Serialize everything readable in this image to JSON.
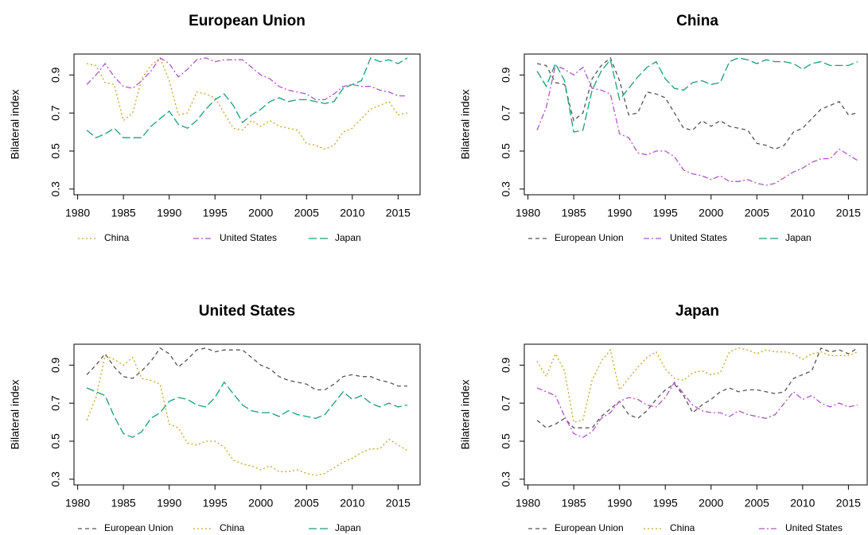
{
  "chart_data": [
    {
      "type": "line",
      "title": "European Union",
      "ylabel": "Bilateral index",
      "x": [
        1981,
        1982,
        1983,
        1984,
        1985,
        1986,
        1987,
        1988,
        1989,
        1990,
        1991,
        1992,
        1993,
        1994,
        1995,
        1996,
        1997,
        1998,
        1999,
        2000,
        2001,
        2002,
        2003,
        2004,
        2005,
        2006,
        2007,
        2008,
        2009,
        2010,
        2011,
        2012,
        2013,
        2014,
        2015,
        2016
      ],
      "xlim": [
        1979.6,
        2017.4
      ],
      "xticks": [
        1980,
        1985,
        1990,
        1995,
        2000,
        2005,
        2010,
        2015
      ],
      "ylim": [
        0.27,
        1.01
      ],
      "yticks": [
        0.3,
        0.5,
        0.7,
        0.9
      ],
      "series": [
        {
          "name": "China",
          "color": "#c9a227",
          "linestyle": "dotted",
          "values": [
            0.96,
            0.95,
            0.86,
            0.85,
            0.66,
            0.7,
            0.88,
            0.95,
            0.99,
            0.87,
            0.69,
            0.7,
            0.81,
            0.8,
            0.78,
            0.7,
            0.62,
            0.61,
            0.66,
            0.63,
            0.66,
            0.63,
            0.62,
            0.61,
            0.54,
            0.53,
            0.51,
            0.53,
            0.6,
            0.62,
            0.67,
            0.72,
            0.74,
            0.76,
            0.69,
            0.7
          ]
        },
        {
          "name": "United States",
          "color": "#b155c6",
          "linestyle": "dashdot",
          "values": [
            0.85,
            0.9,
            0.96,
            0.89,
            0.84,
            0.83,
            0.87,
            0.92,
            0.99,
            0.96,
            0.89,
            0.93,
            0.98,
            0.99,
            0.97,
            0.98,
            0.98,
            0.98,
            0.94,
            0.9,
            0.88,
            0.84,
            0.82,
            0.81,
            0.8,
            0.77,
            0.77,
            0.8,
            0.84,
            0.85,
            0.84,
            0.84,
            0.82,
            0.81,
            0.79,
            0.79
          ]
        },
        {
          "name": "Japan",
          "color": "#1b9e77",
          "linestyle": "longdash",
          "values": [
            0.61,
            0.57,
            0.59,
            0.62,
            0.57,
            0.57,
            0.57,
            0.63,
            0.67,
            0.71,
            0.64,
            0.62,
            0.66,
            0.72,
            0.77,
            0.8,
            0.74,
            0.65,
            0.69,
            0.72,
            0.76,
            0.78,
            0.76,
            0.77,
            0.77,
            0.76,
            0.75,
            0.76,
            0.83,
            0.85,
            0.87,
            0.99,
            0.97,
            0.98,
            0.96,
            0.99
          ]
        }
      ]
    },
    {
      "type": "line",
      "title": "China",
      "ylabel": "Bilateral index",
      "x": [
        1981,
        1982,
        1983,
        1984,
        1985,
        1986,
        1987,
        1988,
        1989,
        1990,
        1991,
        1992,
        1993,
        1994,
        1995,
        1996,
        1997,
        1998,
        1999,
        2000,
        2001,
        2002,
        2003,
        2004,
        2005,
        2006,
        2007,
        2008,
        2009,
        2010,
        2011,
        2012,
        2013,
        2014,
        2015,
        2016
      ],
      "xlim": [
        1979.6,
        2017.4
      ],
      "xticks": [
        1980,
        1985,
        1990,
        1995,
        2000,
        2005,
        2010,
        2015
      ],
      "ylim": [
        0.27,
        1.01
      ],
      "yticks": [
        0.3,
        0.5,
        0.7,
        0.9
      ],
      "series": [
        {
          "name": "European Union",
          "color": "#555555",
          "linestyle": "dashed",
          "values": [
            0.96,
            0.95,
            0.86,
            0.85,
            0.66,
            0.7,
            0.88,
            0.95,
            0.99,
            0.87,
            0.69,
            0.7,
            0.81,
            0.8,
            0.78,
            0.7,
            0.62,
            0.61,
            0.66,
            0.63,
            0.66,
            0.63,
            0.62,
            0.61,
            0.54,
            0.53,
            0.51,
            0.53,
            0.6,
            0.62,
            0.67,
            0.72,
            0.74,
            0.76,
            0.69,
            0.7
          ]
        },
        {
          "name": "United States",
          "color": "#b155c6",
          "linestyle": "dashdot",
          "values": [
            0.61,
            0.73,
            0.95,
            0.93,
            0.9,
            0.94,
            0.83,
            0.82,
            0.8,
            0.59,
            0.57,
            0.49,
            0.48,
            0.5,
            0.5,
            0.47,
            0.4,
            0.38,
            0.37,
            0.35,
            0.37,
            0.34,
            0.34,
            0.35,
            0.33,
            0.32,
            0.33,
            0.36,
            0.39,
            0.41,
            0.44,
            0.46,
            0.46,
            0.51,
            0.48,
            0.45
          ]
        },
        {
          "name": "Japan",
          "color": "#1b9e77",
          "linestyle": "longdash",
          "values": [
            0.92,
            0.84,
            0.96,
            0.87,
            0.6,
            0.61,
            0.82,
            0.92,
            0.98,
            0.77,
            0.83,
            0.89,
            0.94,
            0.97,
            0.88,
            0.83,
            0.82,
            0.86,
            0.87,
            0.85,
            0.86,
            0.97,
            0.99,
            0.98,
            0.96,
            0.98,
            0.97,
            0.97,
            0.96,
            0.93,
            0.96,
            0.97,
            0.95,
            0.95,
            0.95,
            0.97
          ]
        }
      ]
    },
    {
      "type": "line",
      "title": "United States",
      "ylabel": "Bilateral index",
      "x": [
        1981,
        1982,
        1983,
        1984,
        1985,
        1986,
        1987,
        1988,
        1989,
        1990,
        1991,
        1992,
        1993,
        1994,
        1995,
        1996,
        1997,
        1998,
        1999,
        2000,
        2001,
        2002,
        2003,
        2004,
        2005,
        2006,
        2007,
        2008,
        2009,
        2010,
        2011,
        2012,
        2013,
        2014,
        2015,
        2016
      ],
      "xlim": [
        1979.6,
        2017.4
      ],
      "xticks": [
        1980,
        1985,
        1990,
        1995,
        2000,
        2005,
        2010,
        2015
      ],
      "ylim": [
        0.27,
        1.01
      ],
      "yticks": [
        0.3,
        0.5,
        0.7,
        0.9
      ],
      "series": [
        {
          "name": "European Union",
          "color": "#555555",
          "linestyle": "dashed",
          "values": [
            0.85,
            0.9,
            0.96,
            0.89,
            0.84,
            0.83,
            0.87,
            0.92,
            0.99,
            0.96,
            0.89,
            0.93,
            0.98,
            0.99,
            0.97,
            0.98,
            0.98,
            0.98,
            0.94,
            0.9,
            0.88,
            0.84,
            0.82,
            0.81,
            0.8,
            0.77,
            0.77,
            0.8,
            0.84,
            0.85,
            0.84,
            0.84,
            0.82,
            0.81,
            0.79,
            0.79
          ]
        },
        {
          "name": "China",
          "color": "#c9a227",
          "linestyle": "dotted",
          "values": [
            0.61,
            0.73,
            0.95,
            0.93,
            0.9,
            0.94,
            0.83,
            0.82,
            0.8,
            0.59,
            0.57,
            0.49,
            0.48,
            0.5,
            0.5,
            0.47,
            0.4,
            0.38,
            0.37,
            0.35,
            0.37,
            0.34,
            0.34,
            0.35,
            0.33,
            0.32,
            0.33,
            0.36,
            0.39,
            0.41,
            0.44,
            0.46,
            0.46,
            0.51,
            0.48,
            0.45
          ]
        },
        {
          "name": "Japan",
          "color": "#1b9e77",
          "linestyle": "longdash",
          "values": [
            0.78,
            0.76,
            0.74,
            0.63,
            0.54,
            0.52,
            0.55,
            0.62,
            0.65,
            0.71,
            0.73,
            0.72,
            0.69,
            0.68,
            0.73,
            0.81,
            0.75,
            0.69,
            0.66,
            0.65,
            0.65,
            0.63,
            0.66,
            0.64,
            0.63,
            0.62,
            0.64,
            0.7,
            0.76,
            0.72,
            0.74,
            0.7,
            0.68,
            0.7,
            0.68,
            0.69
          ]
        }
      ]
    },
    {
      "type": "line",
      "title": "Japan",
      "ylabel": "Bilateral index",
      "x": [
        1981,
        1982,
        1983,
        1984,
        1985,
        1986,
        1987,
        1988,
        1989,
        1990,
        1991,
        1992,
        1993,
        1994,
        1995,
        1996,
        1997,
        1998,
        1999,
        2000,
        2001,
        2002,
        2003,
        2004,
        2005,
        2006,
        2007,
        2008,
        2009,
        2010,
        2011,
        2012,
        2013,
        2014,
        2015,
        2016
      ],
      "xlim": [
        1979.6,
        2017.4
      ],
      "xticks": [
        1980,
        1985,
        1990,
        1995,
        2000,
        2005,
        2010,
        2015
      ],
      "ylim": [
        0.27,
        1.01
      ],
      "yticks": [
        0.3,
        0.5,
        0.7,
        0.9
      ],
      "series": [
        {
          "name": "European Union",
          "color": "#555555",
          "linestyle": "dashed",
          "values": [
            0.61,
            0.57,
            0.59,
            0.62,
            0.57,
            0.57,
            0.57,
            0.63,
            0.67,
            0.71,
            0.64,
            0.62,
            0.66,
            0.72,
            0.77,
            0.8,
            0.74,
            0.65,
            0.69,
            0.72,
            0.76,
            0.78,
            0.76,
            0.77,
            0.77,
            0.76,
            0.75,
            0.76,
            0.83,
            0.85,
            0.87,
            0.99,
            0.97,
            0.98,
            0.96,
            0.99
          ]
        },
        {
          "name": "China",
          "color": "#c9a227",
          "linestyle": "dotted",
          "values": [
            0.92,
            0.84,
            0.96,
            0.87,
            0.6,
            0.61,
            0.82,
            0.92,
            0.98,
            0.77,
            0.83,
            0.89,
            0.94,
            0.97,
            0.88,
            0.83,
            0.82,
            0.86,
            0.87,
            0.85,
            0.86,
            0.97,
            0.99,
            0.98,
            0.96,
            0.98,
            0.97,
            0.97,
            0.96,
            0.93,
            0.96,
            0.97,
            0.95,
            0.95,
            0.95,
            0.97
          ]
        },
        {
          "name": "United States",
          "color": "#b155c6",
          "linestyle": "dashdot",
          "values": [
            0.78,
            0.76,
            0.74,
            0.63,
            0.54,
            0.52,
            0.55,
            0.62,
            0.65,
            0.71,
            0.73,
            0.72,
            0.69,
            0.68,
            0.73,
            0.81,
            0.75,
            0.69,
            0.66,
            0.65,
            0.65,
            0.63,
            0.66,
            0.64,
            0.63,
            0.62,
            0.64,
            0.7,
            0.76,
            0.72,
            0.74,
            0.7,
            0.68,
            0.7,
            0.68,
            0.69
          ]
        }
      ]
    }
  ]
}
